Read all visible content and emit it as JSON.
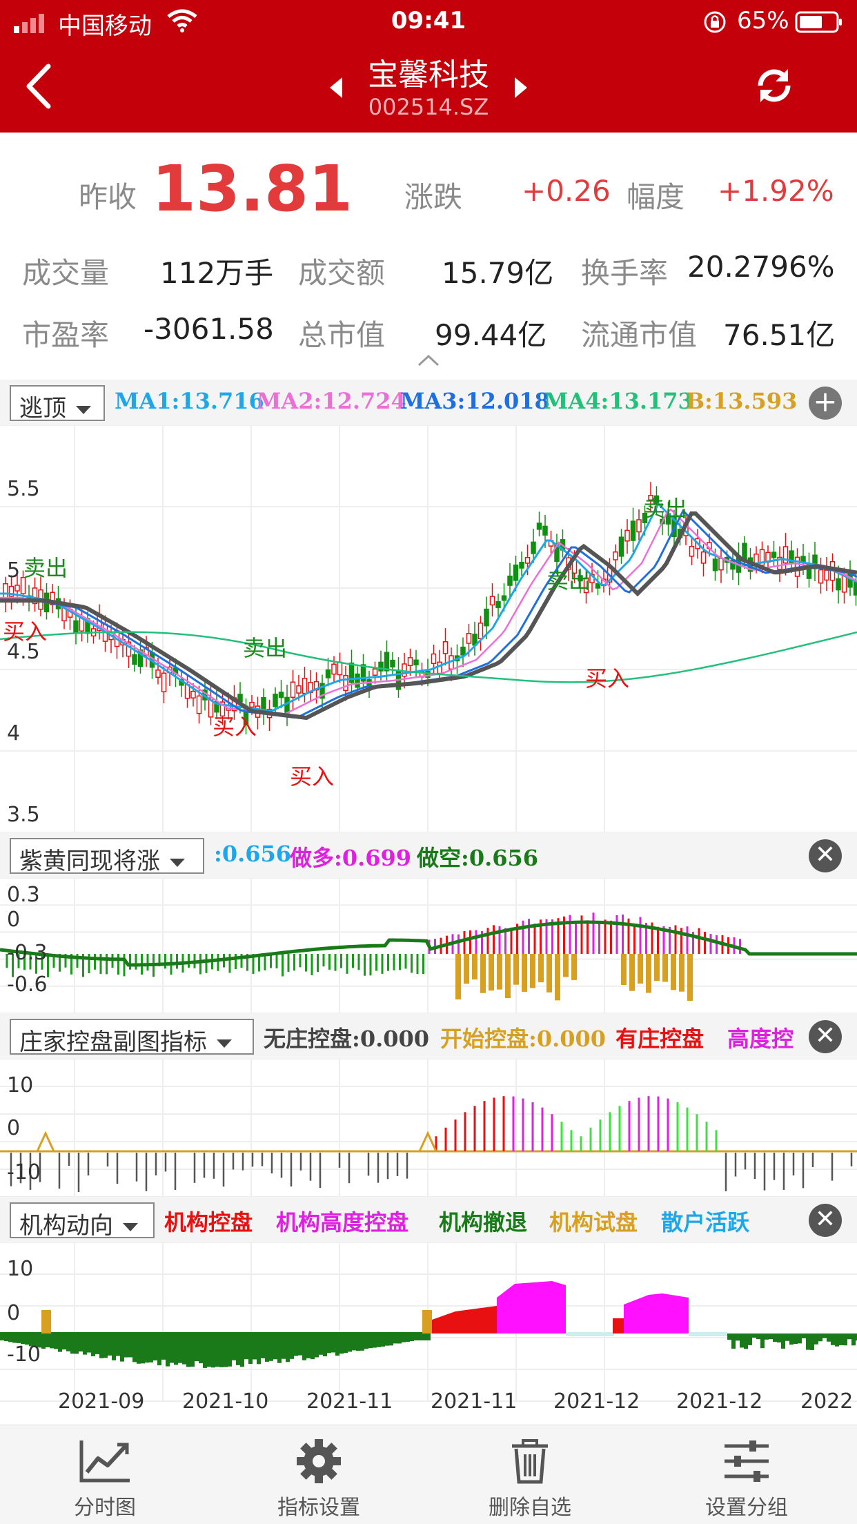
{
  "status_bar": {
    "carrier": "中国移动",
    "time": "09:41",
    "battery": "65%"
  },
  "header": {
    "stock_name": "宝馨科技",
    "stock_code": "002514.SZ"
  },
  "quote": {
    "prev_close_label": "昨收",
    "prev_close": "13.81",
    "change_label": "涨跌",
    "change": "+0.26",
    "pct_label": "幅度",
    "pct": "+1.92%",
    "volume_label": "成交量",
    "volume": "112万手",
    "amount_label": "成交额",
    "amount": "15.79亿",
    "turnover_label": "换手率",
    "turnover": "20.2796%",
    "pe_label": "市盈率",
    "pe": "-3061.58",
    "mcap_label": "总市值",
    "mcap": "99.44亿",
    "float_label": "流通市值",
    "float": "76.51亿"
  },
  "main_panel": {
    "selector": "逃顶",
    "legend": [
      {
        "text": "MA1:13.716",
        "color": "#1ea7e8"
      },
      {
        "text": "MA2:12.724",
        "color": "#ec6fd8"
      },
      {
        "text": "MA3:12.018",
        "color": "#1e6fe0"
      },
      {
        "text": "MA4:13.173",
        "color": "#22c07a"
      },
      {
        "text": "B:13.593",
        "color": "#d8a020"
      }
    ],
    "y_ticks": [
      "5.5",
      "5",
      "4.5",
      "4",
      "3.5"
    ],
    "signals": [
      {
        "text": "卖出",
        "type": "sell"
      },
      {
        "text": "买入",
        "type": "buy"
      },
      {
        "text": "卖出",
        "type": "sell"
      },
      {
        "text": "买入",
        "type": "buy"
      },
      {
        "text": "买入",
        "type": "buy"
      },
      {
        "text": "卖出",
        "type": "sell"
      },
      {
        "text": "买入",
        "type": "buy"
      },
      {
        "text": "卖出",
        "type": "sell"
      }
    ]
  },
  "panel2": {
    "selector": "紫黄同现将涨",
    "legend": [
      {
        "text": ":0.656",
        "color": "#1ea7e8"
      },
      {
        "text": "做多:0.699",
        "color": "#e020e0"
      },
      {
        "text": "做空:0.656",
        "color": "#1a7a1a"
      }
    ],
    "y_ticks": [
      "0.3",
      "0",
      "-0.3",
      "-0.6"
    ]
  },
  "panel3": {
    "selector": "庄家控盘副图指标",
    "legend": [
      {
        "text": "无庄控盘:0.000",
        "color": "#444444"
      },
      {
        "text": "开始控盘:0.000",
        "color": "#d8a020"
      },
      {
        "text": "有庄控盘",
        "color": "#e81010"
      },
      {
        "text": "高度控",
        "color": "#e020e0"
      }
    ],
    "y_ticks": [
      "10",
      "0",
      "-10"
    ]
  },
  "panel4": {
    "selector": "机构动向",
    "legend": [
      {
        "text": "机构控盘",
        "color": "#e81010"
      },
      {
        "text": "机构高度控盘",
        "color": "#e020e0"
      },
      {
        "text": "机构撤退",
        "color": "#1a7a1a"
      },
      {
        "text": "机构试盘",
        "color": "#d8a020"
      },
      {
        "text": "散户活跃",
        "color": "#1ea7e8"
      }
    ],
    "y_ticks": [
      "10",
      "0",
      "-10"
    ]
  },
  "x_axis": [
    "2021-09",
    "2021-10",
    "2021-11",
    "2021-11",
    "2021-12",
    "2021-12",
    "2022"
  ],
  "bottom_nav": [
    {
      "label": "分时图",
      "icon": "line-chart-icon"
    },
    {
      "label": "指标设置",
      "icon": "gear-icon"
    },
    {
      "label": "删除自选",
      "icon": "trash-icon"
    },
    {
      "label": "设置分组",
      "icon": "sliders-icon"
    }
  ]
}
